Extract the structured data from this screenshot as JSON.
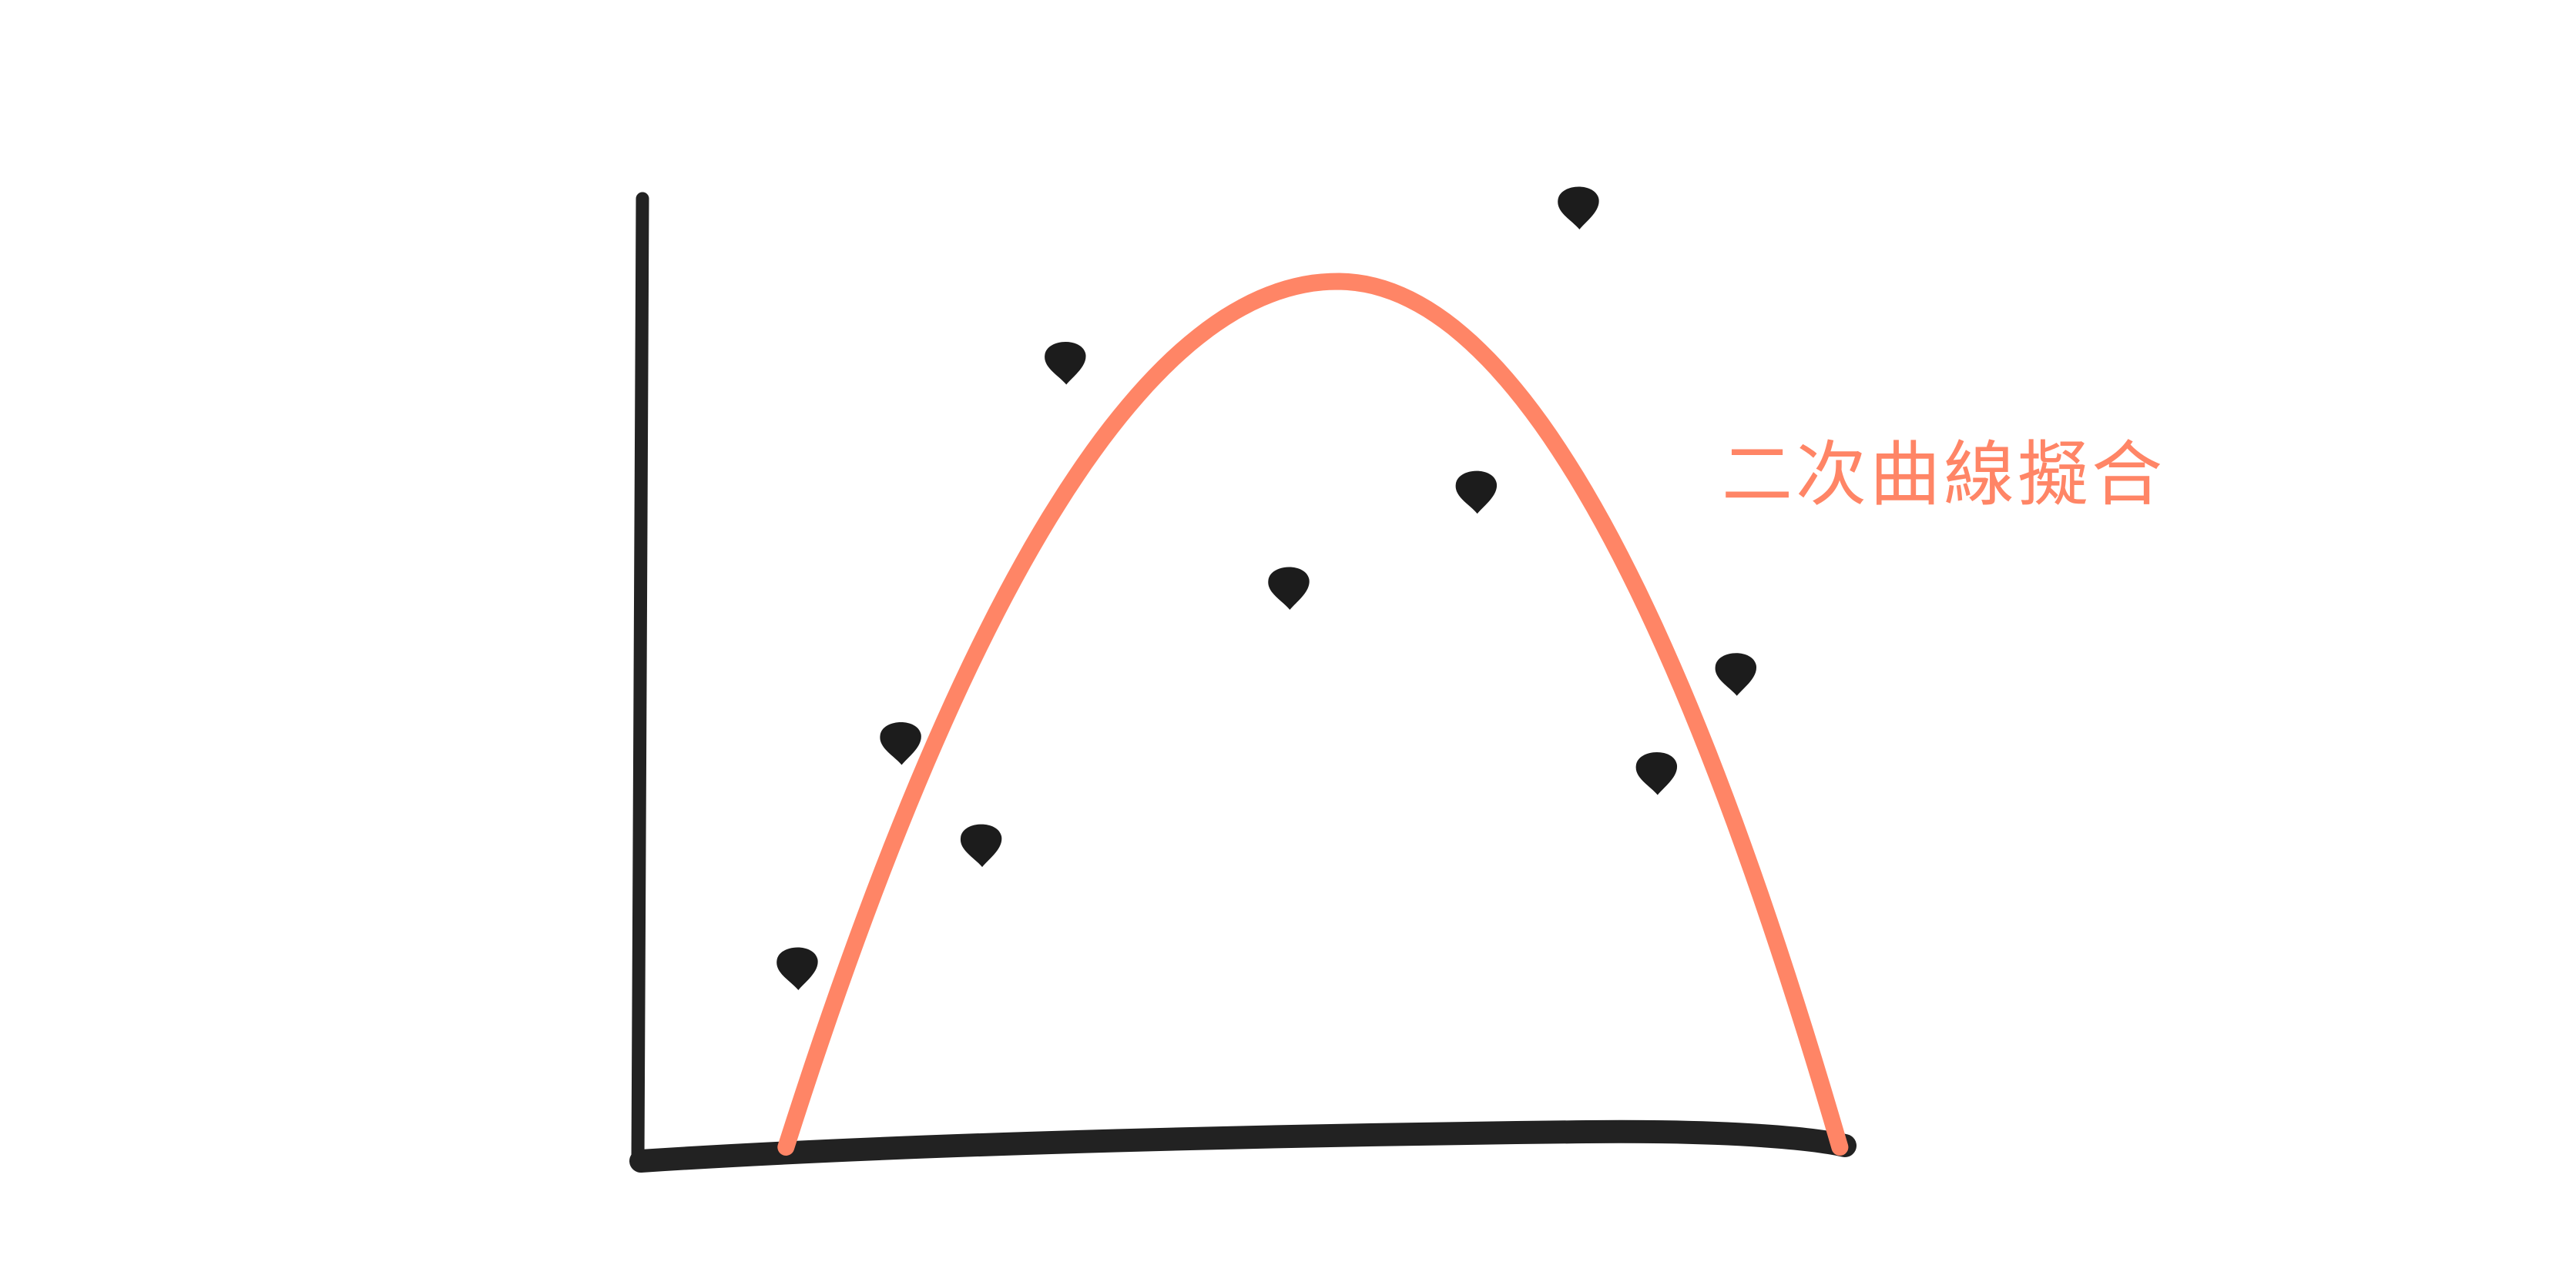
{
  "chart_data": {
    "type": "scatter",
    "title": "",
    "xlabel": "",
    "ylabel": "",
    "xlim": [
      0,
      10
    ],
    "ylim": [
      0,
      10
    ],
    "grid": false,
    "points": [
      {
        "x": 1.31,
        "y": 1.8
      },
      {
        "x": 2.17,
        "y": 4.05
      },
      {
        "x": 2.84,
        "y": 3.03
      },
      {
        "x": 3.54,
        "y": 7.85
      },
      {
        "x": 5.4,
        "y": 5.6
      },
      {
        "x": 6.96,
        "y": 6.56
      },
      {
        "x": 7.81,
        "y": 9.4
      },
      {
        "x": 8.46,
        "y": 3.75
      },
      {
        "x": 9.12,
        "y": 4.74
      }
    ],
    "series": [
      {
        "type": "line",
        "label": "二次曲線擬合",
        "shape": "quadratic",
        "vertex": [
          5.81,
          8.65
        ],
        "roots": [
          1.22,
          9.99
        ]
      }
    ]
  },
  "colors": {
    "axis": "#222222",
    "points": "#1c1c1c",
    "curve": "#ff8566"
  }
}
